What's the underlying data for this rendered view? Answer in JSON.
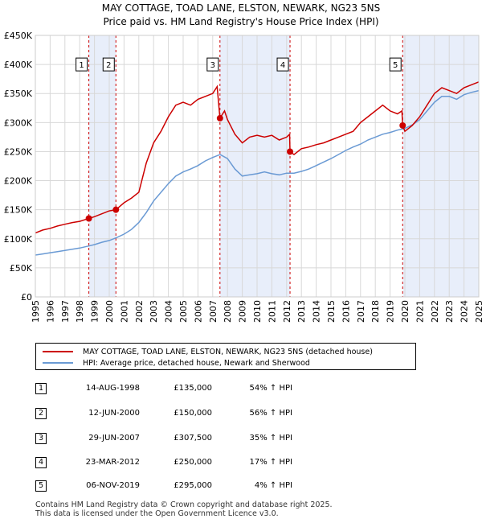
{
  "title_line1": "MAY COTTAGE, TOAD LANE, ELSTON, NEWARK, NG23 5NS",
  "title_line2": "Price paid vs. HM Land Registry's House Price Index (HPI)",
  "legend": {
    "property": "MAY COTTAGE, TOAD LANE, ELSTON, NEWARK, NG23 5NS (detached house)",
    "hpi": "HPI: Average price, detached house, Newark and Sherwood"
  },
  "colors": {
    "property": "#cc0000",
    "hpi": "#6a9ad4",
    "band": "#e8eefa",
    "grid": "#d8d8d8"
  },
  "transactions": [
    {
      "num": "1",
      "date": "14-AUG-1998",
      "price": "£135,000",
      "hpi": "54% ↑ HPI"
    },
    {
      "num": "2",
      "date": "12-JUN-2000",
      "price": "£150,000",
      "hpi": "56% ↑ HPI"
    },
    {
      "num": "3",
      "date": "29-JUN-2007",
      "price": "£307,500",
      "hpi": "35% ↑ HPI"
    },
    {
      "num": "4",
      "date": "23-MAR-2012",
      "price": "£250,000",
      "hpi": "17% ↑ HPI"
    },
    {
      "num": "5",
      "date": "06-NOV-2019",
      "price": "£295,000",
      "hpi": "4% ↑ HPI"
    }
  ],
  "footer_line1": "Contains HM Land Registry data © Crown copyright and database right 2025.",
  "footer_line2": "This data is licensed under the Open Government Licence v3.0.",
  "chart_data": {
    "type": "line",
    "xlim": [
      1995,
      2025
    ],
    "ylim": [
      0,
      450000
    ],
    "x_ticks": [
      "1995",
      "1996",
      "1997",
      "1998",
      "1999",
      "2000",
      "2001",
      "2002",
      "2003",
      "2004",
      "2005",
      "2006",
      "2007",
      "2008",
      "2009",
      "2010",
      "2011",
      "2012",
      "2013",
      "2014",
      "2015",
      "2016",
      "2017",
      "2018",
      "2019",
      "2020",
      "2021",
      "2022",
      "2023",
      "2024",
      "2025"
    ],
    "y_ticks": [
      {
        "value": 0,
        "label": "£0"
      },
      {
        "value": 50000,
        "label": "£50K"
      },
      {
        "value": 100000,
        "label": "£100K"
      },
      {
        "value": 150000,
        "label": "£150K"
      },
      {
        "value": 200000,
        "label": "£200K"
      },
      {
        "value": 250000,
        "label": "£250K"
      },
      {
        "value": 300000,
        "label": "£300K"
      },
      {
        "value": 350000,
        "label": "£350K"
      },
      {
        "value": 400000,
        "label": "£400K"
      },
      {
        "value": 450000,
        "label": "£450K"
      }
    ],
    "grid": true,
    "shaded_ranges": [
      [
        1998.62,
        2000.45
      ],
      [
        2007.49,
        2012.23
      ],
      [
        2019.85,
        2025.0
      ]
    ],
    "sales": [
      {
        "label": "1",
        "x": 1998.62,
        "y": 135000
      },
      {
        "label": "2",
        "x": 2000.45,
        "y": 150000
      },
      {
        "label": "3",
        "x": 2007.49,
        "y": 307500
      },
      {
        "label": "4",
        "x": 2012.23,
        "y": 250000
      },
      {
        "label": "5",
        "x": 2019.85,
        "y": 295000
      }
    ],
    "series": [
      {
        "key": "property",
        "name": "MAY COTTAGE, TOAD LANE, ELSTON, NEWARK, NG23 5NS (detached house)",
        "x": [
          1995.0,
          1995.5,
          1996.0,
          1996.5,
          1997.0,
          1997.5,
          1998.0,
          1998.5,
          1998.62,
          1999.0,
          1999.5,
          2000.0,
          2000.45,
          2001.0,
          2001.5,
          2002.0,
          2002.5,
          2003.0,
          2003.5,
          2004.0,
          2004.5,
          2005.0,
          2005.5,
          2006.0,
          2006.5,
          2007.0,
          2007.3,
          2007.49,
          2007.8,
          2008.0,
          2008.5,
          2009.0,
          2009.5,
          2010.0,
          2010.5,
          2011.0,
          2011.5,
          2012.0,
          2012.2,
          2012.23,
          2012.5,
          2013.0,
          2013.5,
          2014.0,
          2014.5,
          2015.0,
          2015.5,
          2016.0,
          2016.5,
          2017.0,
          2017.5,
          2018.0,
          2018.5,
          2019.0,
          2019.5,
          2019.8,
          2019.85,
          2020.0,
          2020.5,
          2021.0,
          2021.5,
          2022.0,
          2022.5,
          2023.0,
          2023.5,
          2024.0,
          2024.5,
          2025.0
        ],
        "y": [
          110000,
          115000,
          118000,
          122000,
          125000,
          128000,
          130000,
          134000,
          135000,
          138000,
          143000,
          148000,
          150000,
          162000,
          170000,
          180000,
          230000,
          265000,
          285000,
          310000,
          330000,
          335000,
          330000,
          340000,
          345000,
          350000,
          362000,
          307500,
          320000,
          305000,
          280000,
          265000,
          275000,
          278000,
          275000,
          278000,
          270000,
          275000,
          280000,
          250000,
          245000,
          255000,
          258000,
          262000,
          265000,
          270000,
          275000,
          280000,
          285000,
          300000,
          310000,
          320000,
          330000,
          320000,
          315000,
          320000,
          295000,
          285000,
          295000,
          310000,
          330000,
          350000,
          360000,
          355000,
          350000,
          360000,
          365000,
          370000
        ]
      },
      {
        "key": "hpi",
        "name": "HPI: Average price, detached house, Newark and Sherwood",
        "x": [
          1995.0,
          1995.5,
          1996.0,
          1996.5,
          1997.0,
          1997.5,
          1998.0,
          1998.5,
          1999.0,
          1999.5,
          2000.0,
          2000.5,
          2001.0,
          2001.5,
          2002.0,
          2002.5,
          2003.0,
          2003.5,
          2004.0,
          2004.5,
          2005.0,
          2005.5,
          2006.0,
          2006.5,
          2007.0,
          2007.5,
          2008.0,
          2008.5,
          2009.0,
          2009.5,
          2010.0,
          2010.5,
          2011.0,
          2011.5,
          2012.0,
          2012.5,
          2013.0,
          2013.5,
          2014.0,
          2014.5,
          2015.0,
          2015.5,
          2016.0,
          2016.5,
          2017.0,
          2017.5,
          2018.0,
          2018.5,
          2019.0,
          2019.5,
          2020.0,
          2020.5,
          2021.0,
          2021.5,
          2022.0,
          2022.5,
          2023.0,
          2023.5,
          2024.0,
          2024.5,
          2025.0
        ],
        "y": [
          72000,
          74000,
          76000,
          78000,
          80000,
          82000,
          84000,
          87000,
          90000,
          94000,
          97000,
          102000,
          108000,
          116000,
          128000,
          145000,
          165000,
          180000,
          195000,
          208000,
          215000,
          220000,
          226000,
          234000,
          240000,
          245000,
          238000,
          220000,
          208000,
          210000,
          212000,
          215000,
          212000,
          210000,
          213000,
          213000,
          216000,
          220000,
          226000,
          232000,
          238000,
          245000,
          252000,
          258000,
          263000,
          270000,
          275000,
          280000,
          283000,
          287000,
          290000,
          296000,
          305000,
          320000,
          335000,
          345000,
          345000,
          340000,
          348000,
          352000,
          355000
        ]
      }
    ]
  }
}
